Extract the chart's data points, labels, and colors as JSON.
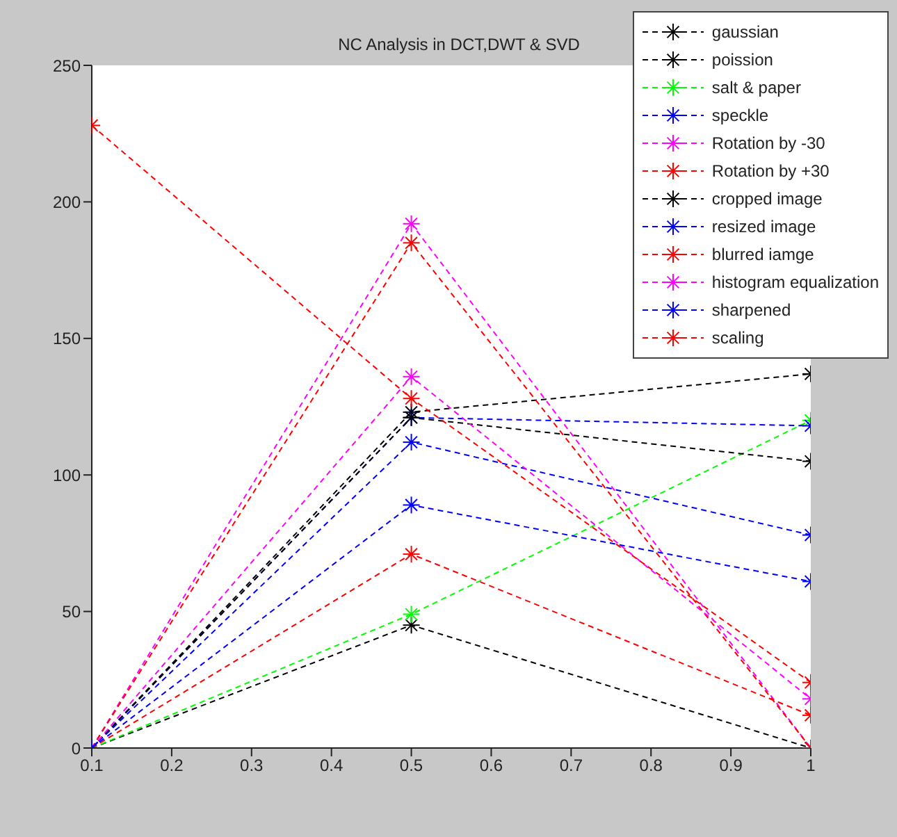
{
  "chart_data": {
    "type": "line",
    "title": "NC Analysis in DCT,DWT & SVD",
    "x": [
      0.1,
      0.5,
      1
    ],
    "xlim": [
      0.1,
      1
    ],
    "xticks": [
      0.1,
      0.2,
      0.3,
      0.4,
      0.5,
      0.6,
      0.7,
      0.8,
      0.9,
      1
    ],
    "ylim": [
      0,
      250
    ],
    "yticks": [
      0,
      50,
      100,
      150,
      200,
      250
    ],
    "grid": false,
    "legend": "top right",
    "marker": "cross",
    "line_style": "dashed",
    "series": [
      {
        "name": "gaussian",
        "color": "#000000",
        "values": [
          0,
          45,
          0
        ]
      },
      {
        "name": "poission",
        "color": "#000000",
        "values": [
          0,
          123,
          137
        ]
      },
      {
        "name": "salt & paper",
        "color": "#00ff00",
        "values": [
          0,
          49,
          120
        ]
      },
      {
        "name": "speckle",
        "color": "#0000ff",
        "values": [
          0,
          121,
          118
        ]
      },
      {
        "name": "Rotation by -30",
        "color": "#ff00ff",
        "values": [
          0,
          192,
          0
        ]
      },
      {
        "name": "Rotation by +30",
        "color": "#ff0000",
        "values": [
          0,
          185,
          0
        ]
      },
      {
        "name": "cropped image",
        "color": "#000000",
        "values": [
          0,
          121,
          105
        ]
      },
      {
        "name": "resized image",
        "color": "#0000ff",
        "values": [
          0,
          112,
          78
        ]
      },
      {
        "name": "blurred iamge",
        "color": "#ff0000",
        "values": [
          0,
          71,
          12
        ]
      },
      {
        "name": "histogram equalization",
        "color": "#ff00ff",
        "values": [
          0,
          136,
          18
        ]
      },
      {
        "name": "sharpened",
        "color": "#0000ff",
        "values": [
          0,
          89,
          61
        ]
      },
      {
        "name": "scaling",
        "color": "#ff0000",
        "values": [
          228,
          128,
          24
        ]
      }
    ]
  }
}
